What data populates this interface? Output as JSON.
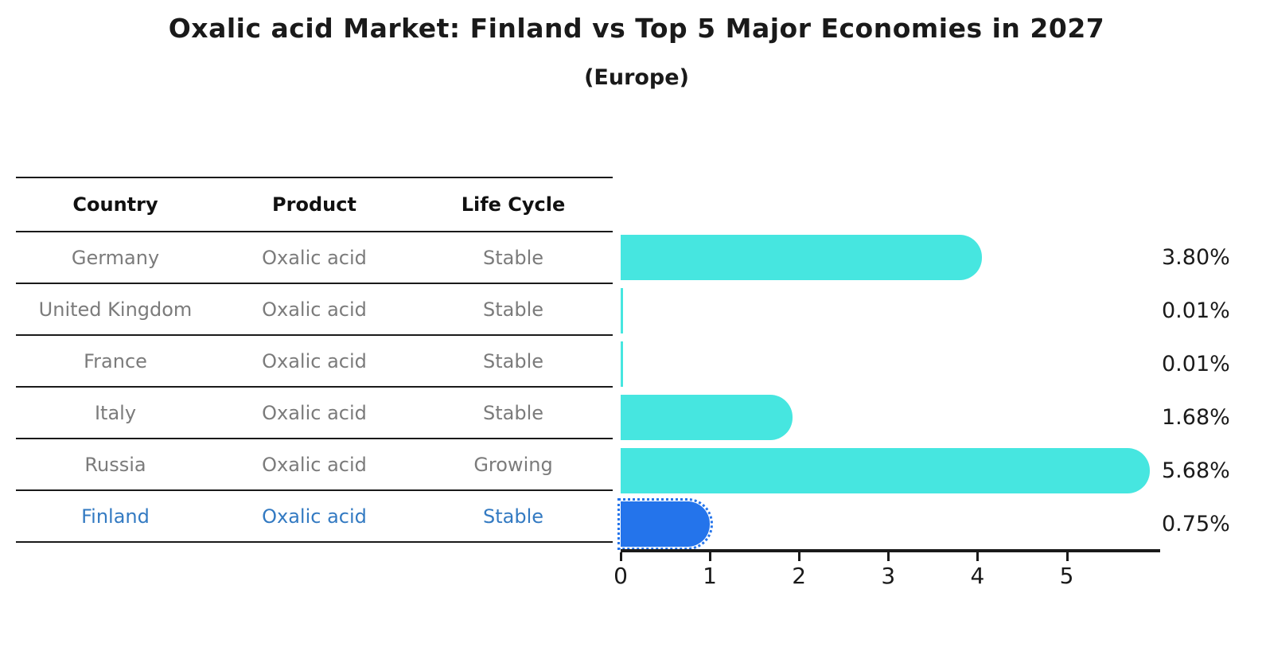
{
  "title": "Oxalic acid Market: Finland vs Top 5 Major Economies in 2027",
  "subtitle": "(Europe)",
  "table": {
    "headers": {
      "country": "Country",
      "product": "Product",
      "life_cycle": "Life Cycle"
    },
    "rows": [
      {
        "country": "Germany",
        "product": "Oxalic acid",
        "life_cycle": "Stable",
        "highlight": false
      },
      {
        "country": "United Kingdom",
        "product": "Oxalic acid",
        "life_cycle": "Stable",
        "highlight": false
      },
      {
        "country": "France",
        "product": "Oxalic acid",
        "life_cycle": "Stable",
        "highlight": false
      },
      {
        "country": "Italy",
        "product": "Oxalic acid",
        "life_cycle": "Stable",
        "highlight": false
      },
      {
        "country": "Russia",
        "product": "Oxalic acid",
        "life_cycle": "Growing",
        "highlight": false
      },
      {
        "country": "Finland",
        "product": "Oxalic acid",
        "life_cycle": "Stable",
        "highlight": true
      }
    ]
  },
  "chart_data": {
    "type": "bar",
    "orientation": "horizontal",
    "title": "Oxalic acid Market: Finland vs Top 5 Major Economies in 2027 (Europe)",
    "categories": [
      "Germany",
      "United Kingdom",
      "France",
      "Italy",
      "Russia",
      "Finland"
    ],
    "values": [
      3.8,
      0.01,
      0.01,
      1.68,
      5.68,
      0.75
    ],
    "value_labels": [
      "3.80%",
      "0.01%",
      "0.01%",
      "1.68%",
      "5.68%",
      "0.75%"
    ],
    "x_ticks": [
      0,
      1,
      2,
      3,
      4,
      5
    ],
    "xlim": [
      0,
      6.03
    ],
    "grid": false,
    "legend": false,
    "highlight_index": 5,
    "colors": {
      "bar": "#46e6e0",
      "highlight_bar": "#2474eb",
      "axis": "#1a1a1a",
      "table_text": "#7b7b7b",
      "highlight_text": "#337ac2"
    }
  }
}
